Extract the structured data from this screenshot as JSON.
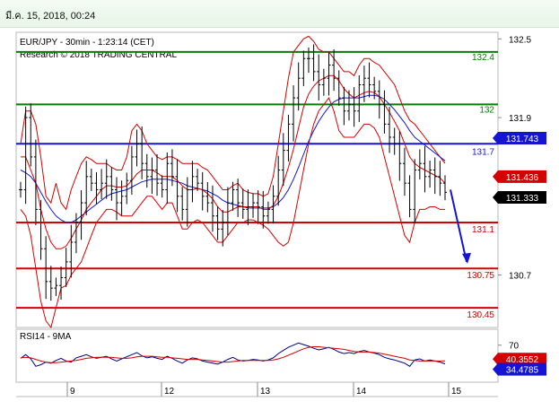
{
  "header": {
    "datestamp": "มี.ค. 15, 2018, 00:24"
  },
  "chart_data": [
    {
      "type": "candlestick",
      "title": "EUR/JPY - 30min - 1:23:14 (CET)",
      "subtitle": "Research © 2018 TRADING CENTRAL",
      "ylim": [
        130.3,
        132.55
      ],
      "y_ticks": [
        {
          "value": 132.5,
          "label": "132.5"
        },
        {
          "value": 131.9,
          "label": "131.9"
        },
        {
          "value": 131.3,
          "label": "131.3"
        },
        {
          "value": 130.7,
          "label": "130.7"
        }
      ],
      "x_ticks": [
        "9",
        "12",
        "13",
        "14",
        "15"
      ],
      "grid": false,
      "levels": [
        {
          "value": 132.4,
          "label": "132.4",
          "color": "#008000"
        },
        {
          "value": 132.0,
          "label": "132",
          "color": "#008000"
        },
        {
          "value": 131.7,
          "label": "131.7",
          "color": "#1414d2"
        },
        {
          "value": 131.1,
          "label": "131.1",
          "color": "#d40000"
        },
        {
          "value": 130.75,
          "label": "130.75",
          "color": "#d40000"
        },
        {
          "value": 130.45,
          "label": "130.45",
          "color": "#d40000"
        }
      ],
      "price_tags": [
        {
          "value": 131.743,
          "label": "131.743",
          "color": "#1414d2"
        },
        {
          "value": 131.436,
          "label": "131.436",
          "color": "#d40000"
        },
        {
          "value": 131.333,
          "label": "131.333",
          "color": "#000000"
        }
      ],
      "forecast_arrow": {
        "from": 131.35,
        "to": 130.8,
        "color": "#1414d2"
      },
      "price_path": [
        131.35,
        131.9,
        131.6,
        131.2,
        130.9,
        130.65,
        130.6,
        130.62,
        130.68,
        130.8,
        130.95,
        131.1,
        131.25,
        131.45,
        131.4,
        131.35,
        131.4,
        131.45,
        131.35,
        131.25,
        131.3,
        131.42,
        131.6,
        131.7,
        131.55,
        131.45,
        131.5,
        131.4,
        131.35,
        131.55,
        131.45,
        131.3,
        131.2,
        131.35,
        131.45,
        131.4,
        131.3,
        131.25,
        131.15,
        131.05,
        131.1,
        131.25,
        131.35,
        131.25,
        131.2,
        131.22,
        131.25,
        131.22,
        131.15,
        131.2,
        131.3,
        131.5,
        131.65,
        131.85,
        132.05,
        132.2,
        132.35,
        132.35,
        132.25,
        132.15,
        132.2,
        132.3,
        132.2,
        132.05,
        131.95,
        132.0,
        131.95,
        132.15,
        132.2,
        132.15,
        132.1,
        132.0,
        131.85,
        131.75,
        131.7,
        131.55,
        131.4,
        131.2,
        131.5,
        131.55,
        131.45,
        131.5,
        131.45,
        131.4,
        131.33
      ],
      "ma_fast": [
        131.6,
        131.6,
        131.5,
        131.4,
        131.2,
        131.05,
        130.95,
        130.9,
        130.9,
        130.92,
        130.98,
        131.05,
        131.12,
        131.2,
        131.25,
        131.3,
        131.35,
        131.38,
        131.38,
        131.37,
        131.37,
        131.38,
        131.42,
        131.47,
        131.5,
        131.5,
        131.5,
        131.48,
        131.45,
        131.45,
        131.45,
        131.42,
        131.38,
        131.35,
        131.35,
        131.36,
        131.35,
        131.32,
        131.28,
        131.22,
        131.18,
        131.18,
        131.2,
        131.22,
        131.22,
        131.22,
        131.22,
        131.22,
        131.2,
        131.2,
        131.23,
        131.3,
        131.4,
        131.52,
        131.66,
        131.82,
        131.98,
        132.08,
        132.14,
        132.18,
        132.2,
        132.22,
        132.22,
        132.18,
        132.12,
        132.08,
        132.05,
        132.07,
        132.09,
        132.1,
        132.09,
        132.06,
        132.0,
        131.94,
        131.87,
        131.8,
        131.7,
        131.6,
        131.55,
        131.52,
        131.5,
        131.48,
        131.46,
        131.44,
        131.4
      ],
      "ma_slow": [
        131.5,
        131.48,
        131.45,
        131.4,
        131.33,
        131.26,
        131.2,
        131.15,
        131.12,
        131.1,
        131.1,
        131.12,
        131.15,
        131.18,
        131.21,
        131.24,
        131.27,
        131.3,
        131.32,
        131.33,
        131.34,
        131.35,
        131.37,
        131.39,
        131.41,
        131.42,
        131.43,
        131.43,
        131.43,
        131.43,
        131.42,
        131.41,
        131.4,
        131.38,
        131.37,
        131.36,
        131.35,
        131.34,
        131.32,
        131.3,
        131.27,
        131.25,
        131.24,
        131.23,
        131.22,
        131.21,
        131.21,
        131.21,
        131.21,
        131.21,
        131.22,
        131.25,
        131.29,
        131.35,
        131.43,
        131.52,
        131.62,
        131.72,
        131.8,
        131.87,
        131.93,
        131.98,
        132.02,
        132.04,
        132.05,
        132.05,
        132.05,
        132.05,
        132.06,
        132.07,
        132.07,
        132.06,
        132.04,
        132.0,
        131.96,
        131.91,
        131.86,
        131.8,
        131.75,
        131.72,
        131.69,
        131.66,
        131.63,
        131.6,
        131.57
      ],
      "band_upper": [
        131.7,
        131.95,
        131.95,
        131.85,
        131.6,
        131.3,
        131.25,
        131.4,
        131.25,
        131.2,
        131.35,
        131.45,
        131.55,
        131.6,
        131.58,
        131.55,
        131.55,
        131.55,
        131.52,
        131.5,
        131.5,
        131.6,
        131.8,
        131.85,
        131.8,
        131.7,
        131.65,
        131.6,
        131.58,
        131.6,
        131.6,
        131.58,
        131.55,
        131.55,
        131.55,
        131.55,
        131.52,
        131.5,
        131.45,
        131.4,
        131.35,
        131.35,
        131.38,
        131.4,
        131.35,
        131.33,
        131.32,
        131.32,
        131.3,
        131.32,
        131.45,
        131.7,
        131.95,
        132.2,
        132.4,
        132.45,
        132.5,
        132.52,
        132.48,
        132.42,
        132.4,
        132.4,
        132.35,
        132.3,
        132.25,
        132.25,
        132.22,
        132.3,
        132.35,
        132.35,
        132.32,
        132.3,
        132.25,
        132.2,
        132.15,
        132.05,
        131.95,
        131.88,
        131.85,
        131.8,
        131.75,
        131.7,
        131.65,
        131.6,
        131.55
      ],
      "band_lower": [
        131.2,
        131.15,
        131.0,
        130.75,
        130.5,
        130.35,
        130.3,
        130.45,
        130.6,
        130.62,
        130.7,
        130.75,
        130.8,
        130.9,
        131.0,
        131.1,
        131.15,
        131.2,
        131.2,
        131.18,
        131.15,
        131.15,
        131.15,
        131.2,
        131.25,
        131.3,
        131.3,
        131.25,
        131.2,
        131.25,
        131.25,
        131.15,
        131.05,
        131.05,
        131.1,
        131.12,
        131.1,
        131.05,
        131.0,
        130.95,
        130.95,
        131.0,
        131.05,
        131.1,
        131.1,
        131.12,
        131.12,
        131.1,
        131.08,
        131.05,
        131.0,
        130.95,
        130.92,
        130.95,
        131.1,
        131.3,
        131.5,
        131.7,
        131.85,
        131.95,
        132.0,
        132.05,
        131.95,
        131.8,
        131.75,
        131.75,
        131.75,
        131.8,
        131.85,
        131.85,
        131.82,
        131.75,
        131.6,
        131.45,
        131.3,
        131.15,
        131.0,
        130.95,
        131.1,
        131.2,
        131.2,
        131.22,
        131.22,
        131.2,
        131.2
      ]
    },
    {
      "type": "line",
      "title": "RSI14 - 9MA",
      "ylim": [
        0,
        100
      ],
      "y_ticks": [
        {
          "value": 70,
          "label": "70"
        }
      ],
      "price_tags": [
        {
          "value": 40.3552,
          "label": "40.3552",
          "color": "#d40000"
        },
        {
          "value": 34.4785,
          "label": "34.4785",
          "color": "#1414d2"
        }
      ],
      "series": [
        {
          "color": "#000080",
          "values": [
            45,
            52,
            44,
            30,
            33,
            38,
            36,
            41,
            45,
            40,
            38,
            46,
            49,
            52,
            48,
            45,
            47,
            49,
            44,
            40,
            44,
            48,
            52,
            56,
            50,
            46,
            48,
            45,
            43,
            49,
            45,
            40,
            36,
            42,
            46,
            44,
            40,
            38,
            36,
            34,
            38,
            43,
            47,
            42,
            40,
            41,
            43,
            42,
            40,
            42,
            46,
            54,
            60,
            66,
            70,
            74,
            71,
            68,
            64,
            61,
            63,
            66,
            62,
            57,
            54,
            56,
            54,
            58,
            60,
            57,
            55,
            52,
            47,
            44,
            42,
            39,
            36,
            30,
            42,
            44,
            40,
            42,
            40,
            38,
            34.5
          ]
        },
        {
          "color": "#d40000",
          "values": [
            46,
            47,
            46,
            43,
            40,
            38,
            37,
            37,
            38,
            39,
            40,
            41,
            43,
            45,
            46,
            47,
            47,
            47,
            47,
            46,
            45,
            45,
            46,
            48,
            49,
            49,
            49,
            48,
            47,
            47,
            46,
            45,
            44,
            43,
            43,
            43,
            42,
            41,
            40,
            39,
            38,
            38,
            39,
            40,
            41,
            41,
            41,
            41,
            41,
            41,
            42,
            44,
            47,
            51,
            55,
            59,
            63,
            66,
            67,
            67,
            66,
            65,
            64,
            63,
            62,
            60,
            58,
            57,
            57,
            57,
            56,
            55,
            53,
            51,
            49,
            47,
            45,
            42,
            41,
            40,
            40,
            40,
            40,
            40,
            40.4
          ]
        }
      ]
    }
  ]
}
